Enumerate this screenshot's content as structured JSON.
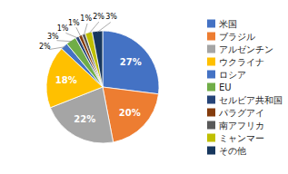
{
  "chart_data": {
    "type": "pie",
    "categories": [
      "米国",
      "ブラジル",
      "アルゼンチン",
      "ウクライナ",
      "ロシア",
      "EU",
      "セルビア共和国",
      "パラグアイ",
      "南アフリカ",
      "ミャンマー",
      "その他"
    ],
    "values": [
      27,
      20,
      22,
      18,
      2,
      3,
      1,
      1,
      1,
      2,
      3
    ],
    "value_labels": [
      "27%",
      "20%",
      "22%",
      "18%",
      "2%",
      "3%",
      "1%",
      "1%",
      "1%",
      "2%",
      "3%"
    ],
    "colors": [
      "#4472C4",
      "#ED7D31",
      "#A5A5A5",
      "#FFC000",
      "#4472C4",
      "#70AD47",
      "#264478",
      "#843C0C",
      "#595959",
      "#BFBF00",
      "#17375E"
    ],
    "data_labels": true,
    "legend": "right"
  }
}
